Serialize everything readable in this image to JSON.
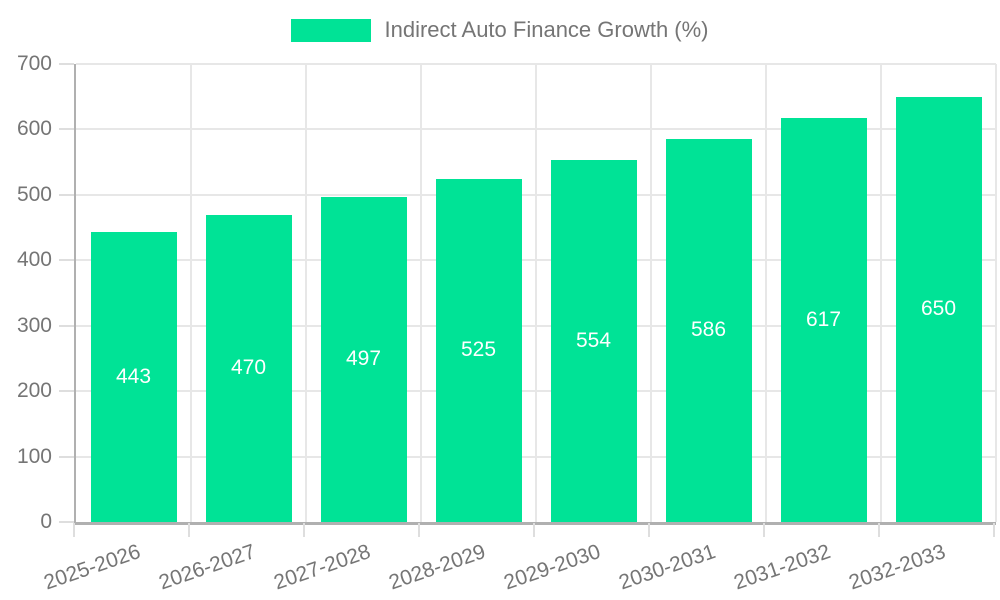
{
  "chart_data": {
    "type": "bar",
    "title": "Indirect Auto Finance Growth (%)",
    "legend_label": "Indirect Auto Finance Growth (%)",
    "legend_position": "top",
    "categories": [
      "2025-2026",
      "2026-2027",
      "2027-2028",
      "2028-2029",
      "2029-2030",
      "2030-2031",
      "2031-2032",
      "2032-2033"
    ],
    "series": [
      {
        "name": "Indirect Auto Finance Growth (%)",
        "values": [
          443,
          470,
          497,
          525,
          554,
          586,
          617,
          650
        ]
      }
    ],
    "xlabel": "",
    "ylabel": "",
    "ylim": [
      0,
      700
    ],
    "yticks": [
      0,
      100,
      200,
      300,
      400,
      500,
      600,
      700
    ],
    "grid": true,
    "x_label_rotation_deg": -19,
    "bar_labels_shown": true,
    "colors": {
      "bar": "#00E396",
      "bar_value_label": "#ffffff",
      "axis_line": "#b0b0b0",
      "gridline": "#e7e7e7",
      "tick": "#dedede",
      "text": "#757575",
      "background": "#ffffff"
    }
  }
}
